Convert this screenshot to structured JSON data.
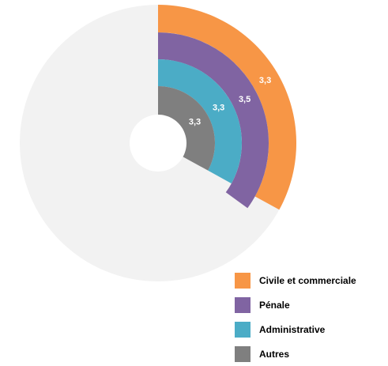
{
  "chart_data": {
    "type": "radial-bar",
    "series": [
      {
        "name": "Civile et commerciale",
        "value": 3.3,
        "label": "3,3",
        "color": "#F79646"
      },
      {
        "name": "Pénale",
        "value": 3.5,
        "label": "3,5",
        "color": "#8064A2"
      },
      {
        "name": "Administrative",
        "value": 3.3,
        "label": "3,3",
        "color": "#4BACC6"
      },
      {
        "name": "Autres",
        "value": 3.3,
        "label": "3,3",
        "color": "#7F7F7F"
      }
    ],
    "scale_max": 10,
    "track_color": "#F2F2F2",
    "legend_position": "bottom-right"
  }
}
